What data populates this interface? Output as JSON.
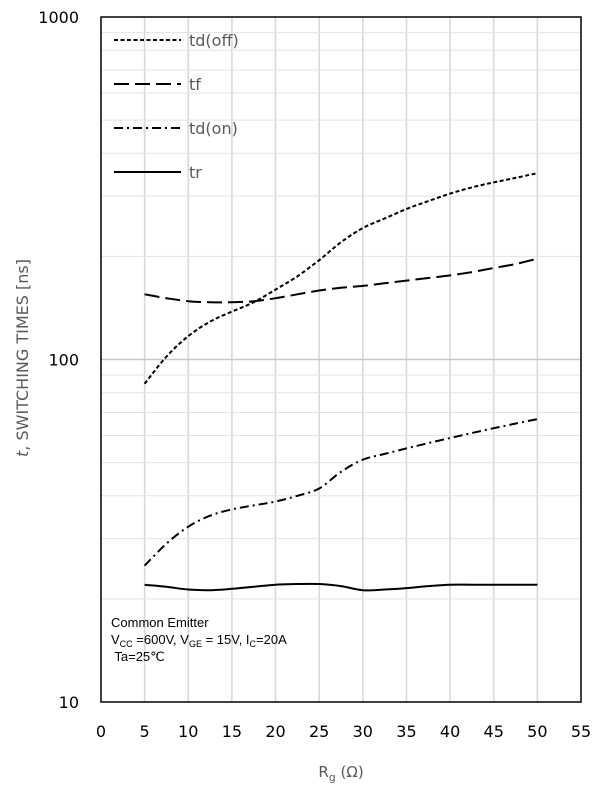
{
  "chart_data": {
    "type": "line",
    "ylabel_italic": "t",
    "ylabel_rest": ", SWITCHING TIMES [ns]",
    "xlabel_main": "R",
    "xlabel_sub": "g",
    "xlabel_unit": " (Ω)",
    "x_scale": "linear",
    "y_scale": "log",
    "xlim": [
      0,
      55
    ],
    "ylim": [
      10,
      1000
    ],
    "x_ticks": [
      "0",
      "5",
      "10",
      "15",
      "20",
      "25",
      "30",
      "35",
      "40",
      "45",
      "50",
      "55"
    ],
    "y_ticks": [
      "10",
      "100",
      "1000"
    ],
    "grid": true,
    "legend_position": "top-left",
    "series": [
      {
        "name": "td(off)",
        "dash": "dotted",
        "x": [
          5,
          7.5,
          10,
          12.5,
          15,
          17.5,
          20,
          22.5,
          25,
          27.5,
          30,
          32.5,
          35,
          37.5,
          40,
          42.5,
          45,
          47.5,
          50
        ],
        "y": [
          85,
          102,
          117,
          129,
          138,
          147,
          160,
          175,
          195,
          220,
          242,
          258,
          275,
          290,
          305,
          318,
          329,
          339,
          350
        ]
      },
      {
        "name": "tf",
        "dash": "dashed",
        "x": [
          5,
          7.5,
          10,
          12.5,
          15,
          17.5,
          20,
          22.5,
          25,
          27.5,
          30,
          32.5,
          35,
          37.5,
          40,
          42.5,
          45,
          47.5,
          50
        ],
        "y": [
          155,
          151,
          148,
          147,
          147,
          148,
          151,
          155,
          159,
          162,
          164,
          167,
          170,
          173,
          176,
          180,
          185,
          190,
          197
        ]
      },
      {
        "name": "td(on)",
        "dash": "dash-dot",
        "x": [
          5,
          7.5,
          10,
          12.5,
          15,
          17.5,
          20,
          22.5,
          25,
          27.5,
          30,
          32.5,
          35,
          37.5,
          40,
          42.5,
          45,
          47.5,
          50
        ],
        "y": [
          25,
          29,
          32.5,
          35,
          36.5,
          37.5,
          38.5,
          40,
          42,
          47,
          51,
          53,
          55,
          57,
          59,
          61,
          63,
          65,
          67
        ]
      },
      {
        "name": "tr",
        "dash": "solid",
        "x": [
          5,
          7.5,
          10,
          12.5,
          15,
          17.5,
          20,
          22.5,
          25,
          27.5,
          30,
          32.5,
          35,
          37.5,
          40,
          42.5,
          45,
          47.5,
          50
        ],
        "y": [
          22,
          21.7,
          21.3,
          21.2,
          21.4,
          21.7,
          22,
          22.1,
          22.1,
          21.8,
          21.2,
          21.3,
          21.5,
          21.8,
          22,
          22,
          22,
          22,
          22
        ]
      }
    ],
    "annotation": {
      "line1": "Common Emitter",
      "line2_parts": [
        {
          "t": "V",
          "sub": false
        },
        {
          "t": "CC",
          "sub": true
        },
        {
          "t": " =600V, V",
          "sub": false
        },
        {
          "t": "GE",
          "sub": true
        },
        {
          "t": " = 15V, I",
          "sub": false
        },
        {
          "t": "C",
          "sub": true
        },
        {
          "t": "=20A",
          "sub": false
        }
      ],
      "line3": " Ta=25℃"
    }
  }
}
